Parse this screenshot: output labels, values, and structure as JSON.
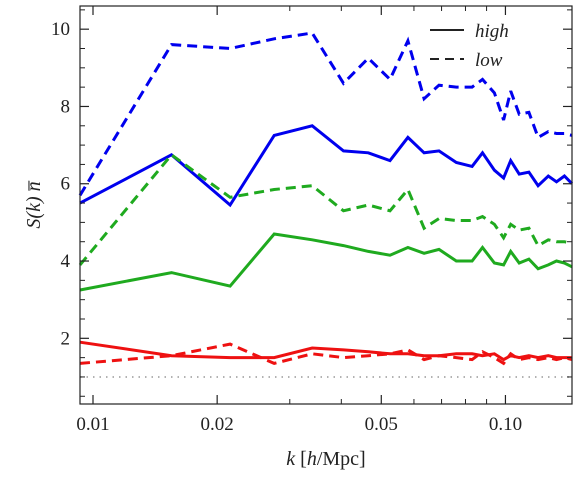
{
  "chart_data": {
    "type": "line",
    "xscale": "log",
    "xlim": [
      0.0093,
      0.145
    ],
    "ylim": [
      0.3,
      10.6
    ],
    "xticks": [
      0.01,
      0.02,
      0.05,
      0.1
    ],
    "xtick_labels": [
      "0.01",
      "0.02",
      "0.05",
      "0.10"
    ],
    "yticks": [
      2,
      4,
      6,
      8,
      10
    ],
    "ytick_labels": [
      "2",
      "4",
      "6",
      "8",
      "10"
    ],
    "xlabel_parts": [
      "k",
      " [",
      "h",
      "/Mpc]"
    ],
    "ylabel_parts": [
      "S(k) ",
      "n̅"
    ],
    "legend": {
      "position": "top-right",
      "entries": [
        {
          "label": "high",
          "dash": "solid"
        },
        {
          "label": "low",
          "dash": "dashed"
        }
      ]
    },
    "reference_line": {
      "y": 1,
      "style": "dotted",
      "color": "#999999"
    },
    "colors": {
      "blue": "#0000ee",
      "green": "#1faa1f",
      "red": "#ee1111"
    },
    "series": [
      {
        "color": "blue",
        "dash": "dashed",
        "x": [
          0.0093,
          0.0155,
          0.0215,
          0.0275,
          0.034,
          0.0405,
          0.0465,
          0.0525,
          0.058,
          0.0635,
          0.069,
          0.076,
          0.083,
          0.088,
          0.094,
          0.099,
          0.103,
          0.108,
          0.114,
          0.12,
          0.127,
          0.133,
          0.139,
          0.145
        ],
        "y": [
          5.7,
          9.6,
          9.5,
          9.75,
          9.9,
          8.6,
          9.25,
          8.7,
          9.7,
          8.2,
          8.55,
          8.5,
          8.5,
          8.7,
          8.35,
          7.65,
          8.4,
          7.8,
          7.85,
          7.2,
          7.35,
          7.3,
          7.3,
          7.25
        ]
      },
      {
        "color": "blue",
        "dash": "solid",
        "x": [
          0.0093,
          0.0155,
          0.0215,
          0.0275,
          0.034,
          0.0405,
          0.0465,
          0.0525,
          0.058,
          0.0635,
          0.069,
          0.076,
          0.083,
          0.088,
          0.094,
          0.099,
          0.103,
          0.108,
          0.114,
          0.12,
          0.127,
          0.133,
          0.139,
          0.145
        ],
        "y": [
          5.5,
          6.75,
          5.45,
          7.25,
          7.5,
          6.85,
          6.8,
          6.6,
          7.2,
          6.8,
          6.85,
          6.55,
          6.45,
          6.8,
          6.35,
          6.15,
          6.6,
          6.25,
          6.3,
          5.95,
          6.2,
          6.05,
          6.2,
          6.0
        ]
      },
      {
        "color": "green",
        "dash": "dashed",
        "x": [
          0.0093,
          0.0155,
          0.0215,
          0.0275,
          0.034,
          0.0405,
          0.0465,
          0.0525,
          0.058,
          0.0635,
          0.069,
          0.076,
          0.083,
          0.088,
          0.094,
          0.099,
          0.103,
          0.108,
          0.114,
          0.12,
          0.127,
          0.133,
          0.139,
          0.145
        ],
        "y": [
          3.9,
          6.75,
          5.65,
          5.85,
          5.95,
          5.3,
          5.45,
          5.3,
          5.85,
          4.85,
          5.1,
          5.05,
          5.05,
          5.15,
          4.95,
          4.6,
          4.95,
          4.8,
          4.85,
          4.4,
          4.55,
          4.5,
          4.5,
          4.45
        ]
      },
      {
        "color": "green",
        "dash": "solid",
        "x": [
          0.0093,
          0.0155,
          0.0215,
          0.0275,
          0.034,
          0.0405,
          0.0465,
          0.0525,
          0.058,
          0.0635,
          0.069,
          0.076,
          0.083,
          0.088,
          0.094,
          0.099,
          0.103,
          0.108,
          0.114,
          0.12,
          0.127,
          0.133,
          0.139,
          0.145
        ],
        "y": [
          3.25,
          3.7,
          3.35,
          4.7,
          4.55,
          4.4,
          4.25,
          4.15,
          4.35,
          4.2,
          4.3,
          4.0,
          4.0,
          4.35,
          3.95,
          3.9,
          4.25,
          3.95,
          4.05,
          3.8,
          3.9,
          4.0,
          3.95,
          3.85
        ]
      },
      {
        "color": "red",
        "dash": "dashed",
        "x": [
          0.0093,
          0.0155,
          0.0215,
          0.0275,
          0.034,
          0.0405,
          0.0465,
          0.0525,
          0.058,
          0.0635,
          0.069,
          0.076,
          0.083,
          0.088,
          0.094,
          0.099,
          0.103,
          0.108,
          0.114,
          0.12,
          0.127,
          0.133,
          0.139,
          0.145
        ],
        "y": [
          1.35,
          1.55,
          1.85,
          1.35,
          1.6,
          1.5,
          1.55,
          1.6,
          1.7,
          1.45,
          1.55,
          1.5,
          1.45,
          1.65,
          1.5,
          1.35,
          1.6,
          1.45,
          1.5,
          1.45,
          1.5,
          1.45,
          1.5,
          1.45
        ]
      },
      {
        "color": "red",
        "dash": "solid",
        "x": [
          0.0093,
          0.0155,
          0.0215,
          0.0275,
          0.034,
          0.0405,
          0.0465,
          0.0525,
          0.058,
          0.0635,
          0.069,
          0.076,
          0.083,
          0.088,
          0.094,
          0.099,
          0.103,
          0.108,
          0.114,
          0.12,
          0.127,
          0.133,
          0.139,
          0.145
        ],
        "y": [
          1.9,
          1.55,
          1.5,
          1.5,
          1.75,
          1.7,
          1.65,
          1.6,
          1.6,
          1.55,
          1.55,
          1.6,
          1.6,
          1.55,
          1.6,
          1.45,
          1.55,
          1.5,
          1.55,
          1.5,
          1.55,
          1.5,
          1.5,
          1.5
        ]
      }
    ]
  }
}
